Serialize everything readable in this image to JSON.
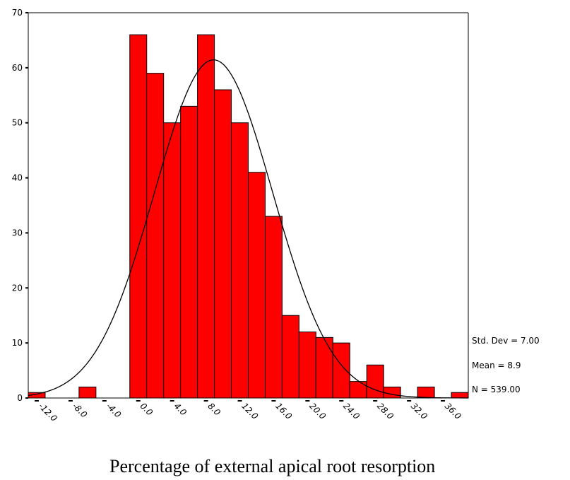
{
  "chart_data": {
    "type": "histogram",
    "x_label": "Percentage of external apical root resorption",
    "bins": [
      -13,
      -11,
      -9,
      -7,
      -5,
      -3,
      -1,
      1,
      3,
      5,
      7,
      9,
      11,
      13,
      15,
      17,
      19,
      21,
      23,
      25,
      27,
      29,
      31,
      33,
      35,
      37,
      39
    ],
    "values": [
      1,
      0,
      0,
      2,
      0,
      0,
      66,
      59,
      50,
      53,
      66,
      56,
      50,
      41,
      33,
      15,
      12,
      11,
      10,
      3,
      6,
      2,
      0,
      2,
      0,
      1
    ],
    "color": "#ff0000",
    "xlim": [
      -13,
      39
    ],
    "ylim": [
      0,
      70
    ],
    "xticks": [
      {
        "value": -12,
        "label": "-12.0"
      },
      {
        "value": -8,
        "label": "-8.0"
      },
      {
        "value": -4,
        "label": "-4.0"
      },
      {
        "value": 0,
        "label": "0.0"
      },
      {
        "value": 4,
        "label": "4.0"
      },
      {
        "value": 8,
        "label": "8.0"
      },
      {
        "value": 12,
        "label": "12.0"
      },
      {
        "value": 16,
        "label": "16.0"
      },
      {
        "value": 20,
        "label": "20.0"
      },
      {
        "value": 24,
        "label": "24.0"
      },
      {
        "value": 28,
        "label": "28.0"
      },
      {
        "value": 32,
        "label": "32.0"
      },
      {
        "value": 36,
        "label": "36.0"
      }
    ],
    "yticks": [
      0,
      10,
      20,
      30,
      40,
      50,
      60,
      70
    ],
    "normal_curve": {
      "std": {
        "value": 7.0,
        "label": "Std. Dev = 7.00"
      },
      "mean": {
        "value": 8.9,
        "label": "Mean = 8.9"
      },
      "n": {
        "value": 539,
        "label": "N = 539.00"
      }
    }
  }
}
